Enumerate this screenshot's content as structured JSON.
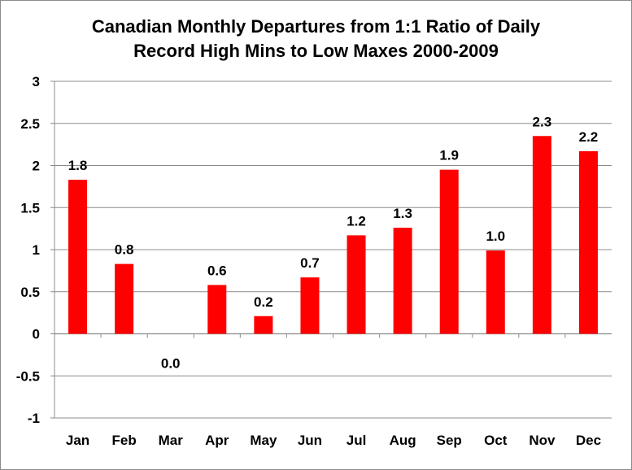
{
  "chart_data": {
    "type": "bar",
    "title_lines": [
      "Canadian Monthly Departures from 1:1 Ratio of Daily",
      "Record High Mins to Low Maxes 2000-2009"
    ],
    "xlabel": "",
    "ylabel": "",
    "categories": [
      "Jan",
      "Feb",
      "Mar",
      "Apr",
      "May",
      "Jun",
      "Jul",
      "Aug",
      "Sep",
      "Oct",
      "Nov",
      "Dec"
    ],
    "values": [
      1.83,
      0.83,
      0.0,
      0.58,
      0.21,
      0.67,
      1.17,
      1.26,
      1.95,
      0.99,
      2.35,
      2.17
    ],
    "data_labels": [
      "1.8",
      "0.8",
      "0.0",
      "0.6",
      "0.2",
      "0.7",
      "1.2",
      "1.3",
      "1.9",
      "1.0",
      "2.3",
      "2.2"
    ],
    "ylim": [
      -1,
      3
    ],
    "yticks": [
      3,
      2.5,
      2,
      1.5,
      1,
      0.5,
      0,
      -0.5,
      -1
    ],
    "ytick_labels": [
      "3",
      "2.5",
      "2",
      "1.5",
      "1",
      "0.5",
      "0",
      "-0.5",
      "-1"
    ],
    "grid": true,
    "legend": "none",
    "bar_color": "#ff0000",
    "grid_color": "#8c8c8c"
  }
}
